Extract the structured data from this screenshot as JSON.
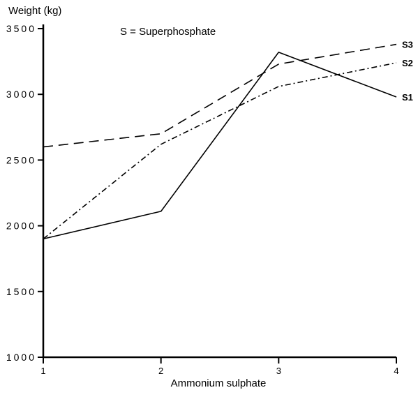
{
  "chart_data": {
    "type": "line",
    "ylabel": "Weight (kg)",
    "xlabel": "Ammonium sulphate",
    "annotation": "S = Superphosphate",
    "x": [
      1,
      2,
      3,
      4
    ],
    "x_tick_labels": [
      "1",
      "2",
      "3",
      "4"
    ],
    "y_ticks": [
      1000,
      1500,
      2000,
      2500,
      3000,
      3500
    ],
    "y_tick_labels": [
      "1000",
      "1500",
      "2000",
      "2500",
      "3000",
      "3500"
    ],
    "xlim": [
      1,
      4
    ],
    "ylim": [
      1000,
      3500
    ],
    "grid": false,
    "series": [
      {
        "name": "S1",
        "label": "S1",
        "line_style": "solid",
        "values": [
          1900,
          2110,
          3320,
          2980
        ]
      },
      {
        "name": "S2",
        "label": "S2",
        "line_style": "dash-dot",
        "values": [
          1900,
          2620,
          3060,
          3240
        ]
      },
      {
        "name": "S3",
        "label": "S3",
        "line_style": "dashed",
        "values": [
          2600,
          2700,
          3230,
          3380
        ]
      }
    ]
  }
}
